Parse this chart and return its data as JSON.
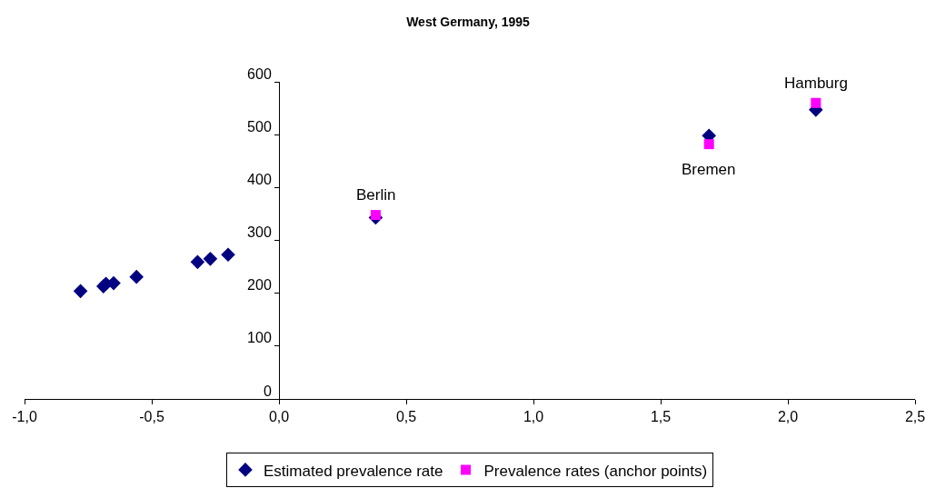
{
  "chart_data": {
    "type": "scatter",
    "title": "West Germany, 1995",
    "xlim": [
      -1.0,
      2.5
    ],
    "xticks": [
      {
        "value": -1.0,
        "label": "-1,0"
      },
      {
        "value": -0.5,
        "label": "-0,5"
      },
      {
        "value": 0.0,
        "label": "0,0"
      },
      {
        "value": 0.5,
        "label": "0,5"
      },
      {
        "value": 1.0,
        "label": "1,0"
      },
      {
        "value": 1.5,
        "label": "1,5"
      },
      {
        "value": 2.0,
        "label": "2,0"
      },
      {
        "value": 2.5,
        "label": "2,5"
      }
    ],
    "ylim": [
      0,
      600
    ],
    "yticks": [
      0,
      100,
      200,
      300,
      400,
      500,
      600
    ],
    "grid": false,
    "legend": "bottom",
    "series": [
      {
        "name": "Estimated prevalence rate",
        "color": "#000080",
        "marker": "diamond",
        "x": [
          -0.78,
          -0.69,
          -0.68,
          -0.65,
          -0.56,
          -0.32,
          -0.27,
          -0.2,
          0.38,
          1.69,
          2.11
        ],
        "values": [
          204,
          213,
          218,
          219,
          231,
          259,
          265,
          273,
          343,
          498,
          547
        ]
      },
      {
        "name": "Prevalence rates (anchor points)",
        "color": "#ff00ff",
        "marker": "square",
        "x": [
          0.38,
          1.69,
          2.11
        ],
        "values": [
          348,
          482,
          560
        ]
      }
    ],
    "annotations": [
      {
        "text": "Berlin",
        "x": 0.38,
        "y": 348
      },
      {
        "text": "Bremen",
        "x": 1.69,
        "y": 482
      },
      {
        "text": "Hamburg",
        "x": 2.11,
        "y": 560
      }
    ]
  }
}
